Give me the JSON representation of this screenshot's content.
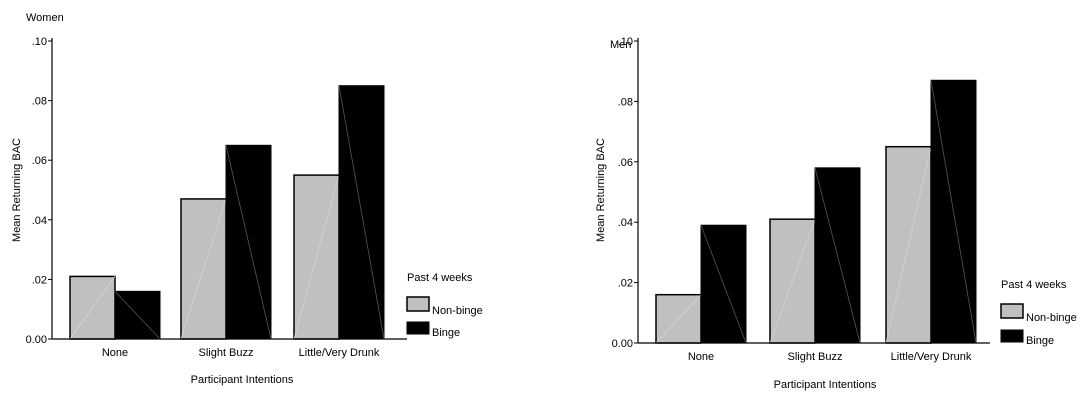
{
  "legend": {
    "title": "Past 4 weeks",
    "series_labels": [
      "Non-binge",
      "Binge"
    ]
  },
  "colors": {
    "non_binge": "#c0c0c0",
    "binge": "#000000",
    "axis": "#000000"
  },
  "chart_data": [
    {
      "type": "bar",
      "title": "Women",
      "xlabel": "Participant Intentions",
      "ylabel": "Mean Returning BAC",
      "categories": [
        "None",
        "Slight Buzz",
        "Little/Very Drunk"
      ],
      "ylim": [
        0,
        0.1
      ],
      "yticks": [
        ".10",
        ".08",
        ".06",
        ".04",
        ".02",
        "0.00"
      ],
      "series": [
        {
          "name": "Non-binge",
          "values": [
            0.021,
            0.047,
            0.055
          ]
        },
        {
          "name": "Binge",
          "values": [
            0.016,
            0.065,
            0.085
          ]
        }
      ],
      "legend_position": "right",
      "grid": false
    },
    {
      "type": "bar",
      "title": "Men",
      "xlabel": "Participant Intentions",
      "ylabel": "Mean Returning BAC",
      "categories": [
        "None",
        "Slight Buzz",
        "Little/Very Drunk"
      ],
      "ylim": [
        0,
        0.1
      ],
      "yticks": [
        ".10",
        ".08",
        ".06",
        ".04",
        ".02",
        "0.00"
      ],
      "series": [
        {
          "name": "Non-binge",
          "values": [
            0.016,
            0.041,
            0.065
          ]
        },
        {
          "name": "Binge",
          "values": [
            0.039,
            0.058,
            0.087
          ]
        }
      ],
      "legend_position": "right",
      "grid": false
    }
  ]
}
